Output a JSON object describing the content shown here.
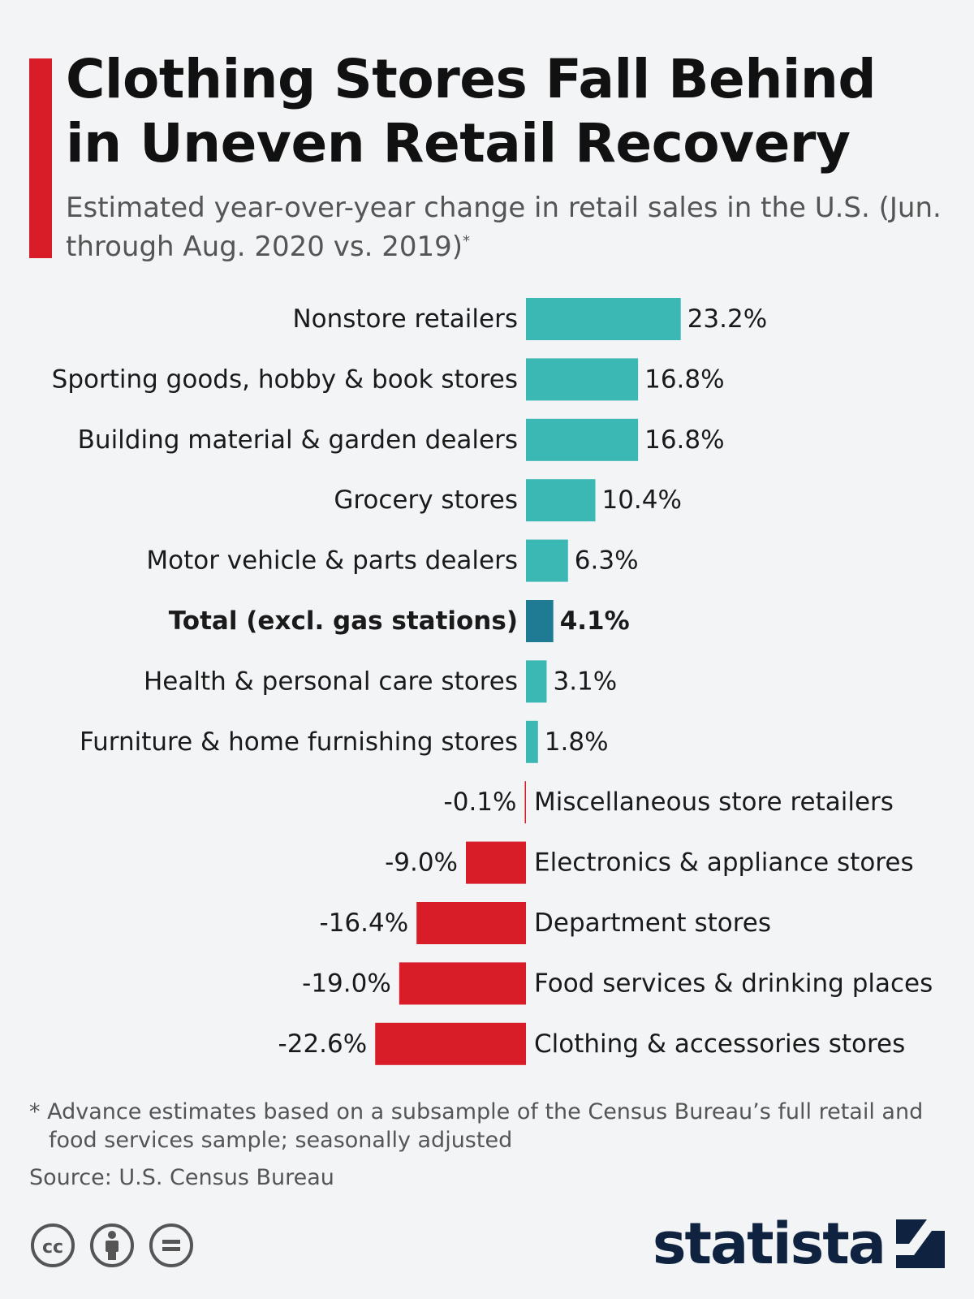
{
  "header": {
    "title": "Clothing Stores Fall Behind in Uneven Retail Recovery",
    "subtitle": "Estimated year-over-year change in retail sales in the U.S. (Jun. through Aug. 2020 vs. 2019)",
    "subtitle_mark": "*"
  },
  "chart_data": {
    "type": "bar",
    "orientation": "horizontal",
    "title": "Clothing Stores Fall Behind in Uneven Retail Recovery",
    "unit": "%",
    "categories": [
      "Nonstore retailers",
      "Sporting goods, hobby & book stores",
      "Building material & garden dealers",
      "Grocery stores",
      "Motor vehicle & parts dealers",
      "Total (excl. gas stations)",
      "Health & personal care stores",
      "Furniture & home furnishing stores",
      "Miscellaneous store retailers",
      "Electronics & appliance stores",
      "Department stores",
      "Food services & drinking places",
      "Clothing & accessories stores"
    ],
    "values": [
      23.2,
      16.8,
      16.8,
      10.4,
      6.3,
      4.1,
      3.1,
      1.8,
      -0.1,
      -9.0,
      -16.4,
      -19.0,
      -22.6
    ],
    "value_labels": [
      "23.2%",
      "16.8%",
      "16.8%",
      "10.4%",
      "6.3%",
      "4.1%",
      "3.1%",
      "1.8%",
      "-0.1%",
      "-9.0%",
      "-16.4%",
      "-19.0%",
      "-22.6%"
    ],
    "highlight": "Total (excl. gas stations)",
    "colors": {
      "positive": "#3bb8b3",
      "negative": "#d81c28",
      "highlight": "#1f7a94"
    }
  },
  "footer": {
    "footnote_line1": "* Advance estimates based on a subsample of the Census Bureau’s full retail and",
    "footnote_line2": "food services sample; seasonally adjusted",
    "source": "Source: U.S. Census Bureau",
    "license_icons": [
      "cc-icon",
      "attribution-icon",
      "no-derivatives-icon"
    ],
    "logo_text": "statista"
  }
}
